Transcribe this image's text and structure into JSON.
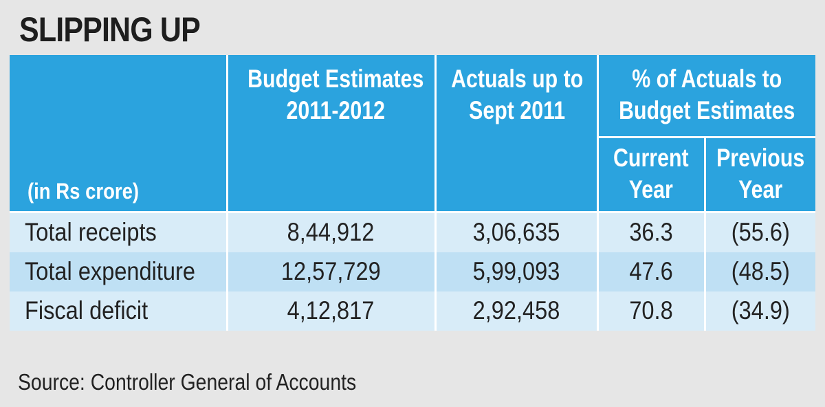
{
  "title": "SLIPPING UP",
  "chart_data": {
    "type": "table",
    "unit_label": "(in Rs crore)",
    "columns": {
      "budget": [
        "Budget Estimates",
        "2011-2012"
      ],
      "actuals": [
        "Actuals up to",
        "Sept 2011"
      ],
      "pct_group": [
        "% of Actuals to",
        "Budget Estimates"
      ],
      "current": [
        "Current",
        "Year"
      ],
      "previous": [
        "Previous",
        "Year"
      ]
    },
    "rows": [
      {
        "label": "Total receipts",
        "budget": "8,44,912",
        "actuals": "3,06,635",
        "current": "36.3",
        "previous": "(55.6)"
      },
      {
        "label": "Total expenditure",
        "budget": "12,57,729",
        "actuals": "5,99,093",
        "current": "47.6",
        "previous": "(48.5)"
      },
      {
        "label": "Fiscal deficit",
        "budget": "4,12,817",
        "actuals": "2,92,458",
        "current": "70.8",
        "previous": "(34.9)"
      }
    ]
  },
  "source": "Source: Controller General of Accounts",
  "colors": {
    "header": "#2ba3de",
    "row_light": "#d8ecf8",
    "row_mid": "#bfe0f4",
    "background": "#e6e6e6"
  }
}
